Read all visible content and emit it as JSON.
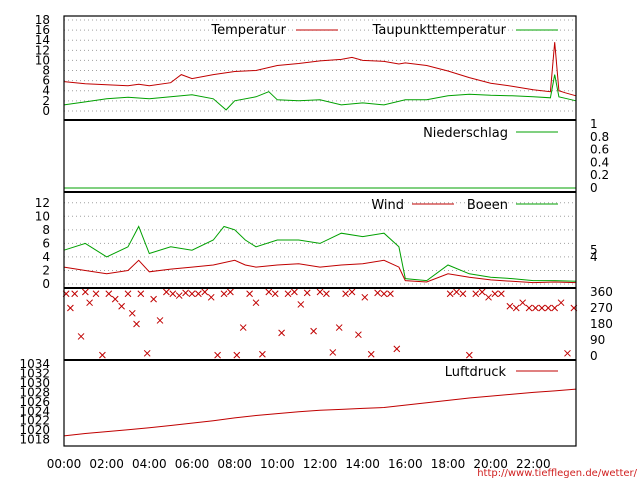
{
  "credit": "http://www.tiefflegen.de/wetter/",
  "colors": {
    "red": "#c00000",
    "green": "#00a000",
    "grid": "#a0a0a0"
  },
  "time_axis": {
    "labels": [
      "00:00",
      "02:00",
      "04:00",
      "06:00",
      "08:00",
      "10:00",
      "12:00",
      "14:00",
      "16:00",
      "18:00",
      "20:00",
      "22:00"
    ],
    "range_hours": [
      0,
      24
    ]
  },
  "chart_data": [
    {
      "type": "line",
      "panel": "temperature",
      "ylim": [
        -1,
        18
      ],
      "yticks": [
        0,
        2,
        4,
        6,
        8,
        10,
        12,
        14,
        16,
        18
      ],
      "grid": true,
      "legend_position": "top",
      "x_unit": "hours",
      "series": [
        {
          "name": "Temperatur",
          "color": "#c00000",
          "x": [
            0,
            1,
            2,
            3,
            3.5,
            4,
            5,
            5.5,
            6,
            7,
            8,
            9,
            10,
            11,
            12,
            13,
            13.5,
            14,
            15,
            15.7,
            16,
            17,
            18,
            19,
            20,
            21,
            22,
            22.8,
            23,
            23.2,
            23.5,
            24
          ],
          "y": [
            5.8,
            5.4,
            5.2,
            5.0,
            5.3,
            5.0,
            5.6,
            7.2,
            6.4,
            7.2,
            7.8,
            8.0,
            9.0,
            9.4,
            9.9,
            10.2,
            10.6,
            10.0,
            9.8,
            9.3,
            9.5,
            9.0,
            7.9,
            6.6,
            5.5,
            4.9,
            4.2,
            3.8,
            13.6,
            4.0,
            3.6,
            3.0
          ]
        },
        {
          "name": "Taupunkttemperatur",
          "color": "#00a000",
          "x": [
            0,
            1,
            2,
            3,
            4,
            5,
            6,
            7,
            7.6,
            8,
            9,
            9.6,
            10,
            11,
            12,
            13,
            14,
            15,
            16,
            17,
            18,
            19,
            20,
            21,
            22,
            22.8,
            23,
            23.2,
            23.5,
            24
          ],
          "y": [
            1.2,
            1.8,
            2.4,
            2.7,
            2.4,
            2.8,
            3.2,
            2.4,
            0.2,
            2.0,
            2.8,
            3.8,
            2.2,
            2.0,
            2.2,
            1.2,
            1.6,
            1.2,
            2.2,
            2.2,
            3.0,
            3.3,
            3.1,
            3.0,
            2.8,
            2.6,
            7.2,
            2.8,
            2.5,
            2.0
          ]
        }
      ]
    },
    {
      "type": "line",
      "panel": "precipitation",
      "ylim": [
        0,
        1
      ],
      "yticks": [
        0,
        0.2,
        0.4,
        0.6,
        0.8,
        1
      ],
      "ytick_labels": [
        "0",
        "0.2",
        "0.4",
        "0.6",
        "0.8",
        "1"
      ],
      "grid": false,
      "series": [
        {
          "name": "Niederschlag",
          "color": "#00a000",
          "x": [
            0,
            24
          ],
          "y": [
            0,
            0
          ]
        }
      ]
    },
    {
      "type": "line",
      "panel": "wind",
      "ylim": [
        0,
        13
      ],
      "yticks": [
        0,
        2,
        4,
        6,
        8,
        10,
        12
      ],
      "right_ticks": [
        4,
        5
      ],
      "grid": true,
      "series": [
        {
          "name": "Wind",
          "color": "#c00000",
          "x": [
            0,
            1,
            2,
            3,
            3.5,
            4,
            5,
            6,
            7,
            8,
            8.5,
            9,
            10,
            11,
            12,
            13,
            14,
            15,
            15.7,
            16,
            17,
            18,
            19,
            20,
            21,
            22,
            23,
            24
          ],
          "y": [
            2.5,
            2.0,
            1.5,
            2.0,
            3.5,
            1.8,
            2.2,
            2.5,
            2.8,
            3.5,
            2.8,
            2.5,
            2.8,
            3.0,
            2.5,
            2.8,
            3.0,
            3.5,
            2.5,
            0.5,
            0.3,
            1.5,
            1.0,
            0.6,
            0.4,
            0.2,
            0.3,
            0.2
          ]
        },
        {
          "name": "Boeen",
          "color": "#00a000",
          "x": [
            0,
            1,
            2,
            3,
            3.5,
            4,
            5,
            6,
            7,
            7.5,
            8,
            8.5,
            9,
            10,
            11,
            12,
            13,
            14,
            15,
            15.7,
            16,
            17,
            18,
            19,
            20,
            21,
            22,
            23,
            24
          ],
          "y": [
            5.0,
            6.0,
            4.0,
            5.5,
            8.5,
            4.5,
            5.5,
            5.0,
            6.5,
            8.5,
            8.0,
            6.5,
            5.5,
            6.5,
            6.5,
            6.0,
            7.5,
            7.0,
            7.5,
            5.5,
            0.8,
            0.5,
            2.8,
            1.5,
            1.0,
            0.8,
            0.5,
            0.5,
            0.4
          ]
        }
      ]
    },
    {
      "type": "scatter",
      "panel": "wind-direction",
      "ylim": [
        0,
        360
      ],
      "yticks": [
        0,
        90,
        180,
        270,
        360
      ],
      "series": [
        {
          "name": "",
          "color": "#c00000",
          "x": [
            0.1,
            0.3,
            0.5,
            0.8,
            1.0,
            1.2,
            1.5,
            1.8,
            2.1,
            2.4,
            2.7,
            3.0,
            3.2,
            3.4,
            3.6,
            3.9,
            4.2,
            4.5,
            4.8,
            5.1,
            5.4,
            5.7,
            6.0,
            6.3,
            6.6,
            6.9,
            7.2,
            7.5,
            7.8,
            8.1,
            8.4,
            8.7,
            9.0,
            9.3,
            9.6,
            9.9,
            10.2,
            10.5,
            10.8,
            11.1,
            11.4,
            11.7,
            12.0,
            12.3,
            12.6,
            12.9,
            13.2,
            13.5,
            13.8,
            14.1,
            14.4,
            14.7,
            15.0,
            15.3,
            15.6,
            18.1,
            18.4,
            18.7,
            19.0,
            19.3,
            19.6,
            19.9,
            20.2,
            20.5,
            20.9,
            21.2,
            21.5,
            21.8,
            22.1,
            22.4,
            22.7,
            23.0,
            23.3,
            23.6,
            23.9
          ],
          "y": [
            350,
            270,
            350,
            110,
            360,
            300,
            350,
            5,
            350,
            320,
            280,
            350,
            240,
            180,
            350,
            15,
            320,
            200,
            360,
            350,
            340,
            355,
            350,
            350,
            360,
            330,
            5,
            350,
            360,
            5,
            160,
            350,
            300,
            10,
            360,
            350,
            130,
            350,
            360,
            290,
            355,
            140,
            360,
            350,
            20,
            160,
            350,
            360,
            120,
            330,
            10,
            355,
            350,
            350,
            40,
            350,
            360,
            350,
            5,
            350,
            360,
            330,
            350,
            350,
            280,
            270,
            300,
            270,
            270,
            270,
            270,
            270,
            300,
            15,
            270
          ]
        }
      ]
    },
    {
      "type": "line",
      "panel": "pressure",
      "ylim": [
        1017.5,
        1034
      ],
      "yticks": [
        1018,
        1020,
        1022,
        1024,
        1026,
        1028,
        1030,
        1032,
        1034
      ],
      "grid": false,
      "series": [
        {
          "name": "Luftdruck",
          "color": "#c00000",
          "x": [
            0,
            1,
            2,
            3,
            4,
            5,
            6,
            7,
            8,
            9,
            10,
            11,
            12,
            13,
            14,
            15,
            16,
            17,
            18,
            19,
            20,
            21,
            22,
            23,
            24
          ],
          "y": [
            1018.8,
            1019.3,
            1019.7,
            1020.1,
            1020.5,
            1021.0,
            1021.5,
            1022.0,
            1022.6,
            1023.1,
            1023.5,
            1023.9,
            1024.2,
            1024.4,
            1024.6,
            1024.8,
            1025.3,
            1025.8,
            1026.3,
            1026.8,
            1027.2,
            1027.6,
            1028.0,
            1028.3,
            1028.7
          ]
        }
      ]
    }
  ]
}
